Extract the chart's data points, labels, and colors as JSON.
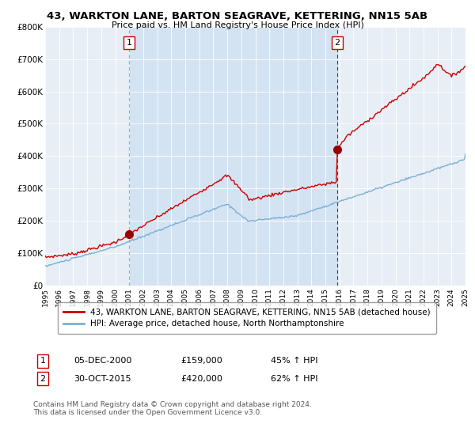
{
  "title": "43, WARKTON LANE, BARTON SEAGRAVE, KETTERING, NN15 5AB",
  "subtitle": "Price paid vs. HM Land Registry's House Price Index (HPI)",
  "background_color": "#ffffff",
  "plot_bg_outside": "#e8eef5",
  "plot_bg_inside": "#dce9f5",
  "grid_color": "#ffffff",
  "ylim": [
    0,
    800000
  ],
  "yticks": [
    0,
    100000,
    200000,
    300000,
    400000,
    500000,
    600000,
    700000,
    800000
  ],
  "ytick_labels": [
    "£0",
    "£100K",
    "£200K",
    "£300K",
    "£400K",
    "£500K",
    "£600K",
    "£700K",
    "£800K"
  ],
  "hpi_color": "#7ab0d4",
  "price_color": "#cc0000",
  "marker_color": "#990000",
  "sale1_year": 2001.0,
  "sale1_price": 159000,
  "sale2_year": 2015.83,
  "sale2_price": 420000,
  "legend_line1": "43, WARKTON LANE, BARTON SEAGRAVE, KETTERING, NN15 5AB (detached house)",
  "legend_line2": "HPI: Average price, detached house, North Northamptonshire",
  "note1_date": "05-DEC-2000",
  "note1_price": "£159,000",
  "note1_hpi": "45% ↑ HPI",
  "note2_date": "30-OCT-2015",
  "note2_price": "£420,000",
  "note2_hpi": "62% ↑ HPI",
  "footer": "Contains HM Land Registry data © Crown copyright and database right 2024.\nThis data is licensed under the Open Government Licence v3.0."
}
